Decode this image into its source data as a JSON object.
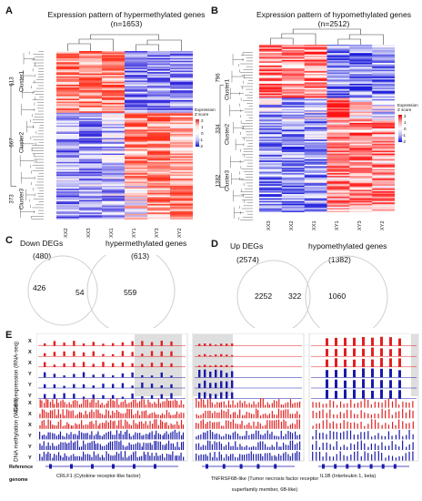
{
  "panel_a": {
    "label": "A",
    "title": "Expression pattern of hypermethylated genes (n=1653)",
    "clusters": [
      {
        "name": "Cluster1",
        "count": "613"
      },
      {
        "name": "Cluster2",
        "count": "667"
      },
      {
        "name": "Cluster3",
        "count": "373"
      }
    ],
    "samples": [
      "XX2",
      "XX3",
      "XX1",
      "XY1",
      "XY3",
      "XY2"
    ],
    "legend_title": "Expression Z score",
    "legend_ticks": [
      "2",
      "1",
      "0",
      "-1",
      "-2"
    ]
  },
  "panel_b": {
    "label": "B",
    "title": "Expression pattern of hypomethylated genes (n=2512)",
    "clusters": [
      {
        "name": "Cluster1",
        "count": "796"
      },
      {
        "name": "Cluster2",
        "count": "334"
      },
      {
        "name": "Cluster3",
        "count": "1382"
      }
    ],
    "samples": [
      "XX3",
      "XX2",
      "XX1",
      "XY1",
      "XY3",
      "XY2"
    ],
    "legend_title": "Expression Z score",
    "legend_ticks": [
      "2",
      "1",
      "0",
      "-1",
      "-2"
    ]
  },
  "panel_c": {
    "label": "C",
    "left_set": "Down DEGs",
    "left_total": "(480)",
    "right_set": "hypermethylated genes",
    "right_total": "(613)",
    "left_only": "426",
    "overlap": "54",
    "right_only": "559"
  },
  "panel_d": {
    "label": "D",
    "left_set": "Up DEGs",
    "left_total": "(2574)",
    "right_set": "hypomethylated genes",
    "right_total": "(1382)",
    "left_only": "2252",
    "overlap": "322",
    "right_only": "1060"
  },
  "panel_e": {
    "label": "E",
    "row_letters": [
      "X",
      "X",
      "X",
      "Y",
      "Y",
      "Y",
      "X",
      "X",
      "X",
      "Y",
      "Y",
      "Y"
    ],
    "section_expr": "Gene expression (RNA-seq)",
    "section_meth": "DNA methylation (WGBS)",
    "reference_label": "Reference genome",
    "genes": [
      "CRLF1 (Cytokine receptor-like factor)",
      "TNFRSF6B-like (Tumor necrosis factor receptor superfamily member, 6B-like)",
      "IL1B (Interleukin 1, beta)"
    ],
    "colors": {
      "xx": "#e02020",
      "xy": "#1a1aa8",
      "highlight": "#dedede"
    }
  }
}
